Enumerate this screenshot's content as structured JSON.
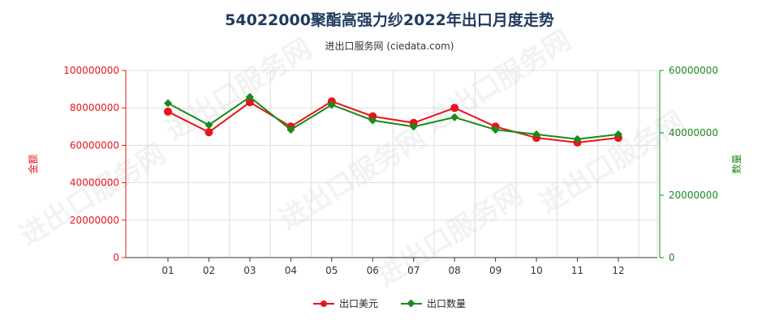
{
  "chart_data": {
    "type": "line",
    "title": "54022000聚酯高强力纱2022年出口月度走势",
    "subtitle": "进出口服务网 (ciedata.com)",
    "categories": [
      "01",
      "02",
      "03",
      "04",
      "05",
      "06",
      "07",
      "08",
      "09",
      "10",
      "11",
      "12"
    ],
    "left_axis": {
      "label": "金额",
      "ylim": [
        0,
        100000000
      ],
      "ticks": [
        "0",
        "20000000",
        "40000000",
        "60000000",
        "80000000",
        "100000000"
      ],
      "color": "#e8141a"
    },
    "right_axis": {
      "label": "数量",
      "ylim": [
        0,
        60000000
      ],
      "ticks": [
        "0",
        "20000000",
        "40000000",
        "60000000"
      ],
      "color": "#1a8a1a"
    },
    "series": [
      {
        "name": "出口美元",
        "axis": "left",
        "color": "#e8141a",
        "marker": "circle",
        "values": [
          78000000,
          67000000,
          83000000,
          70000000,
          83500000,
          75500000,
          72000000,
          80000000,
          70000000,
          64000000,
          61500000,
          64000000
        ]
      },
      {
        "name": "出口数量",
        "axis": "right",
        "color": "#1a8a1a",
        "marker": "diamond",
        "values": [
          49500000,
          42500000,
          51500000,
          41000000,
          49000000,
          44000000,
          42000000,
          45000000,
          41000000,
          39500000,
          38000000,
          39500000
        ]
      }
    ],
    "grid": true,
    "legend_position": "bottom-center",
    "watermark": "进出口服务网"
  }
}
